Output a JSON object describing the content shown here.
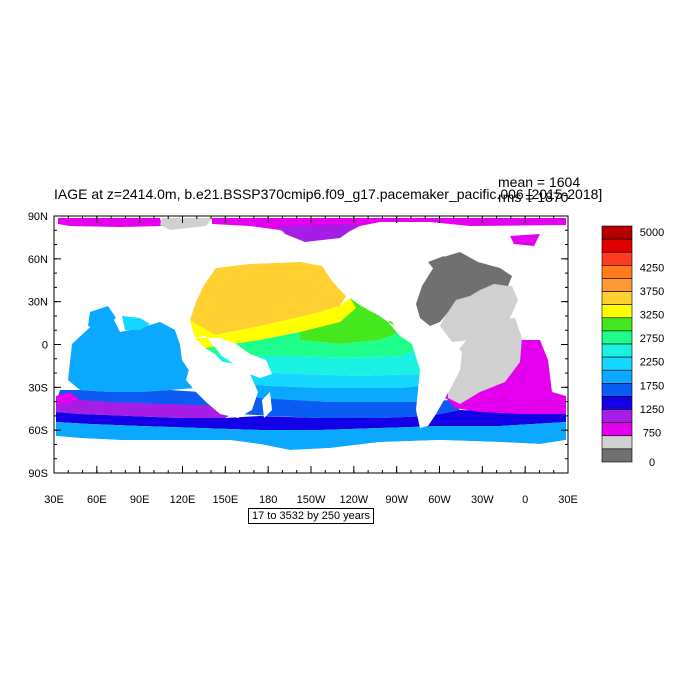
{
  "title": "IAGE at z=2414.0m, b.e21.BSSP370cmip6.f09_g17.pacemaker_pacific.006 [2015-2018]",
  "stats": {
    "mean": "mean = 1604",
    "rms": "rms = 1870"
  },
  "contour_info": "17 to 3532 by 250 years",
  "axes": {
    "x_ticks": [
      "30E",
      "60E",
      "90E",
      "120E",
      "150E",
      "180",
      "150W",
      "120W",
      "90W",
      "60W",
      "30W",
      "0",
      "30E"
    ],
    "y_ticks": [
      "90N",
      "60N",
      "30N",
      "0",
      "30S",
      "60S",
      "90S"
    ]
  },
  "colorbar": {
    "labels": [
      "5000",
      "4250",
      "3750",
      "3250",
      "2750",
      "2250",
      "1750",
      "1250",
      "750",
      "0"
    ],
    "colors": [
      "#b50000",
      "#e00000",
      "#ff3b1f",
      "#ff7a1a",
      "#ff9a33",
      "#ffd030",
      "#ffff00",
      "#44e81c",
      "#1dff8a",
      "#19f2e0",
      "#14d8ff",
      "#0aa8ff",
      "#0b5cf2",
      "#1400e6",
      "#a61ee6",
      "#e400ee",
      "#d0d0d0",
      "#707070"
    ]
  },
  "palette": {
    "land": "#707070",
    "missing": "#d0d0d0",
    "background": "#ffffff"
  }
}
